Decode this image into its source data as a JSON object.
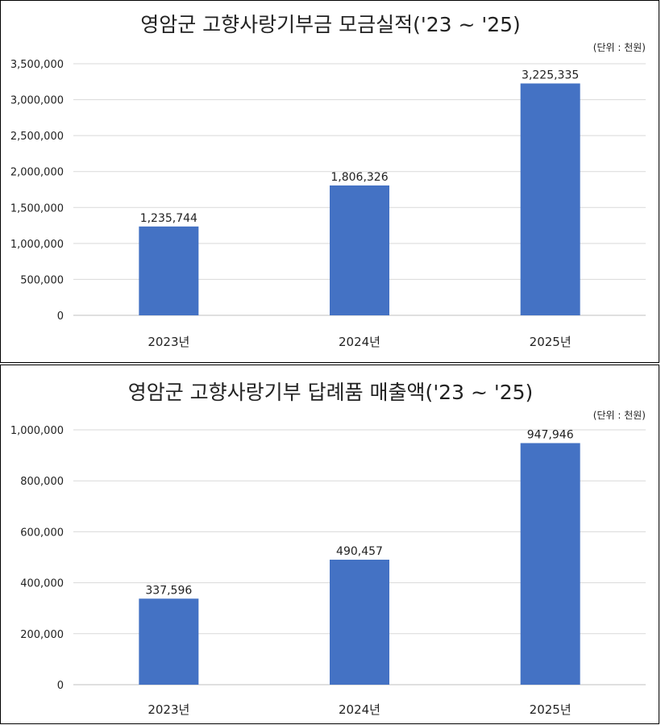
{
  "colors": {
    "bar": "#4472c4"
  },
  "chart_data": [
    {
      "type": "bar",
      "title": "영암군 고향사랑기부금 모금실적('23 ~ '25)",
      "unit_note": "(단위 : 천원)",
      "categories": [
        "2023년",
        "2024년",
        "2025년"
      ],
      "values": [
        1235744,
        1806326,
        3225335
      ],
      "value_labels": [
        "1,235,744",
        "1,806,326",
        "3,225,335"
      ],
      "yticks": [
        0,
        500000,
        1000000,
        1500000,
        2000000,
        2500000,
        3000000,
        3500000
      ],
      "ytick_labels": [
        "0",
        "500,000",
        "1,000,000",
        "1,500,000",
        "2,000,000",
        "2,500,000",
        "3,000,000",
        "3,500,000"
      ],
      "ylim": [
        0,
        3500000
      ],
      "grid": true,
      "legend": "none"
    },
    {
      "type": "bar",
      "title": "영암군 고향사랑기부 답례품 매출액('23 ~ '25)",
      "unit_note": "(단위 : 천원)",
      "categories": [
        "2023년",
        "2024년",
        "2025년"
      ],
      "values": [
        337596,
        490457,
        947946
      ],
      "value_labels": [
        "337,596",
        "490,457",
        "947,946"
      ],
      "yticks": [
        0,
        200000,
        400000,
        600000,
        800000,
        1000000
      ],
      "ytick_labels": [
        "0",
        "200,000",
        "400,000",
        "600,000",
        "800,000",
        "1,000,000"
      ],
      "ylim": [
        0,
        1000000
      ],
      "grid": true,
      "legend": "none"
    }
  ]
}
